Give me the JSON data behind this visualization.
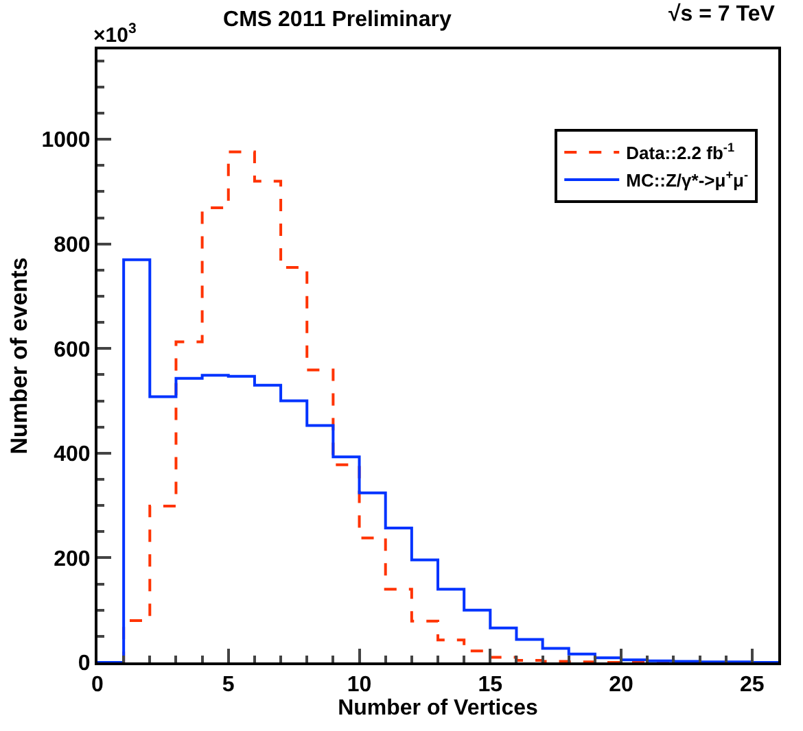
{
  "chart_data": {
    "type": "histogram",
    "title": "CMS 2011 Preliminary",
    "xlabel": "Number of Vertices",
    "ylabel": "Number of events",
    "annotations": [
      "√s = 7 TeV",
      "×10$^{3}$"
    ],
    "bins": [
      0,
      1,
      2,
      3,
      4,
      5,
      6,
      7,
      8,
      9,
      10,
      11,
      12,
      13,
      14,
      15,
      16,
      17,
      18,
      19,
      20,
      21,
      22,
      23,
      24,
      25,
      26
    ],
    "series": [
      {
        "name": "Data::2.2 fb$^{-1}$",
        "color": "#ff3300",
        "line_style": "dashed",
        "values": [
          0,
          80,
          299,
          613,
          869,
          976,
          920,
          755,
          559,
          378,
          238,
          140,
          79,
          43,
          22,
          10,
          4,
          2,
          1,
          0,
          0,
          0,
          0,
          0,
          0,
          0
        ]
      },
      {
        "name": "MC::Z/γ*->μ$^{+}$μ$^{-}$",
        "color": "#0033ff",
        "line_style": "solid",
        "values": [
          0,
          770,
          508,
          543,
          549,
          547,
          530,
          500,
          453,
          393,
          324,
          257,
          196,
          140,
          100,
          66,
          44,
          27,
          16,
          9,
          5,
          3,
          2,
          1,
          1,
          0
        ]
      }
    ],
    "xlim": [
      0,
      26
    ],
    "xticks": [
      0,
      5,
      10,
      15,
      20,
      25
    ],
    "ylim": [
      0,
      1172
    ],
    "yticks": [
      0,
      200,
      400,
      600,
      800,
      1000
    ],
    "legend": "top right"
  }
}
